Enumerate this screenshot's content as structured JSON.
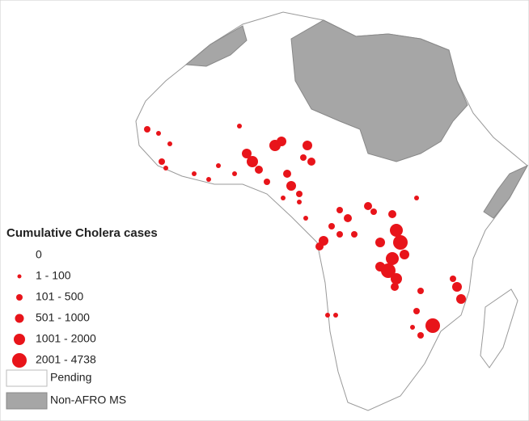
{
  "legend": {
    "title": "Cumulative Cholera cases",
    "items": [
      "0",
      "1 - 100",
      "101 - 500",
      "501 - 1000",
      "1001 - 2000",
      "2001 - 4738"
    ],
    "pending": "Pending",
    "non_afro": "Non-AFRO MS"
  }
}
